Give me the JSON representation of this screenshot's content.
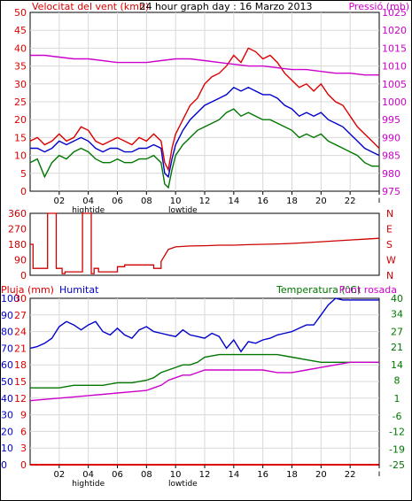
{
  "colors": {
    "wind": "#dd0000",
    "gust_avg": "#0000cc",
    "wind_green": "#007700",
    "pressure": "#cc00cc",
    "humidity": "#0000cc",
    "temperature": "#007700",
    "dewpoint": "#cc00cc",
    "rain": "#dd0000",
    "direction": "#cc0000",
    "grid": "#d8d8d8",
    "axis": "#000000"
  },
  "chart_data": [
    {
      "type": "line",
      "title": "24 hour graph day : 16 Marzo 2013",
      "ylabel": "Velocitat del vent (kmh)",
      "ylabel_right": "Pressió (mb)",
      "ylim": [
        0,
        50
      ],
      "ylim_right": [
        975,
        1025
      ],
      "yticks": [
        0,
        5,
        10,
        15,
        20,
        25,
        30,
        35,
        40,
        45,
        50
      ],
      "yticks_right": [
        975,
        980,
        985,
        990,
        995,
        1000,
        1005,
        1010,
        1015,
        1020,
        1025
      ],
      "xlim": [
        0,
        24
      ],
      "xticks": [
        "02",
        "04",
        "06",
        "08",
        "10",
        "12",
        "14",
        "16",
        "18",
        "20",
        "22"
      ],
      "xticks_extra": [
        {
          "label": "hightide",
          "at": 4
        },
        {
          "label": "lowtide",
          "at": 10.5
        }
      ],
      "grid": true,
      "series": [
        {
          "name": "wind_gust",
          "axis": "left",
          "x": [
            0,
            0.5,
            1,
            1.5,
            2,
            2.5,
            3,
            3.5,
            4,
            4.5,
            5,
            5.5,
            6,
            6.5,
            7,
            7.5,
            8,
            8.5,
            9,
            9.25,
            9.5,
            9.75,
            10,
            10.5,
            11,
            11.5,
            12,
            12.5,
            13,
            13.5,
            14,
            14.5,
            15,
            15.5,
            16,
            16.5,
            17,
            17.5,
            18,
            18.5,
            19,
            19.5,
            20,
            20.5,
            21,
            21.5,
            22,
            22.5,
            23,
            23.5,
            24
          ],
          "values": [
            14,
            15,
            13,
            14,
            16,
            14,
            15,
            18,
            17,
            14,
            13,
            14,
            15,
            14,
            13,
            15,
            14,
            16,
            14,
            8,
            6,
            12,
            16,
            20,
            24,
            26,
            30,
            32,
            33,
            35,
            38,
            36,
            40,
            39,
            37,
            38,
            36,
            33,
            31,
            29,
            30,
            28,
            30,
            27,
            25,
            24,
            21,
            18,
            16,
            14,
            12
          ]
        },
        {
          "name": "wind_average",
          "axis": "left",
          "x": [
            0,
            0.5,
            1,
            1.5,
            2,
            2.5,
            3,
            3.5,
            4,
            4.5,
            5,
            5.5,
            6,
            6.5,
            7,
            7.5,
            8,
            8.5,
            9,
            9.25,
            9.5,
            9.75,
            10,
            10.5,
            11,
            11.5,
            12,
            12.5,
            13,
            13.5,
            14,
            14.5,
            15,
            15.5,
            16,
            16.5,
            17,
            17.5,
            18,
            18.5,
            19,
            19.5,
            20,
            20.5,
            21,
            21.5,
            22,
            22.5,
            23,
            23.5,
            24
          ],
          "values": [
            12,
            12,
            11,
            12,
            14,
            13,
            14,
            15,
            14,
            12,
            11,
            12,
            12,
            11,
            11,
            12,
            12,
            13,
            12,
            5,
            4,
            9,
            13,
            17,
            20,
            22,
            24,
            25,
            26,
            27,
            29,
            28,
            29,
            28,
            27,
            27,
            26,
            24,
            23,
            21,
            22,
            21,
            22,
            20,
            19,
            18,
            16,
            14,
            12,
            11,
            10
          ]
        },
        {
          "name": "wind_speed",
          "axis": "left",
          "x": [
            0,
            0.5,
            1,
            1.5,
            2,
            2.5,
            3,
            3.5,
            4,
            4.5,
            5,
            5.5,
            6,
            6.5,
            7,
            7.5,
            8,
            8.5,
            9,
            9.25,
            9.5,
            9.75,
            10,
            10.5,
            11,
            11.5,
            12,
            12.5,
            13,
            13.5,
            14,
            14.5,
            15,
            15.5,
            16,
            16.5,
            17,
            17.5,
            18,
            18.5,
            19,
            19.5,
            20,
            20.5,
            21,
            21.5,
            22,
            22.5,
            23,
            23.5,
            24
          ],
          "values": [
            8,
            9,
            4,
            8,
            10,
            9,
            11,
            12,
            11,
            9,
            8,
            8,
            9,
            8,
            8,
            9,
            9,
            10,
            8,
            2,
            1,
            6,
            10,
            13,
            15,
            17,
            18,
            19,
            20,
            22,
            23,
            21,
            22,
            21,
            20,
            20,
            19,
            18,
            17,
            15,
            16,
            15,
            16,
            14,
            13,
            12,
            11,
            10,
            8,
            7,
            7
          ]
        },
        {
          "name": "pressure",
          "axis": "right",
          "x": [
            0,
            1,
            2,
            3,
            4,
            5,
            6,
            7,
            8,
            9,
            10,
            11,
            12,
            13,
            14,
            15,
            16,
            17,
            18,
            19,
            20,
            21,
            22,
            23,
            24
          ],
          "values": [
            1013,
            1013,
            1012.5,
            1012,
            1012,
            1011.5,
            1011,
            1011,
            1011,
            1011.5,
            1012,
            1012,
            1011.5,
            1011,
            1010.5,
            1010,
            1010,
            1009.5,
            1009,
            1009,
            1008.5,
            1008,
            1008,
            1007.5,
            1007.5
          ]
        }
      ]
    },
    {
      "type": "line",
      "ylim": [
        0,
        360
      ],
      "yticks": [
        0,
        90,
        180,
        270,
        360
      ],
      "yticks_right": [
        "N",
        "W",
        "S",
        "E",
        "N"
      ],
      "xlim": [
        0,
        24
      ],
      "grid": false,
      "series": [
        {
          "name": "wind_direction",
          "x": [
            0,
            0.2,
            0.2,
            1.2,
            1.2,
            1.8,
            1.8,
            2.2,
            2.2,
            2.4,
            2.4,
            3.6,
            3.6,
            4.2,
            4.2,
            4.4,
            4.4,
            4.7,
            4.7,
            6,
            6,
            6.5,
            6.5,
            8.5,
            8.5,
            9,
            9,
            9.5,
            10,
            11,
            12,
            13,
            14,
            15,
            16,
            17,
            18,
            19,
            20,
            21,
            22,
            23,
            24
          ],
          "values": [
            180,
            180,
            40,
            40,
            360,
            360,
            40,
            40,
            10,
            10,
            20,
            20,
            360,
            360,
            10,
            10,
            40,
            40,
            20,
            20,
            50,
            50,
            60,
            60,
            40,
            40,
            80,
            150,
            165,
            170,
            172,
            175,
            175,
            178,
            180,
            182,
            185,
            190,
            195,
            200,
            205,
            210,
            215
          ]
        }
      ]
    },
    {
      "type": "line",
      "ylabel": "Pluja (mm)",
      "ylabel_alt": "Humitat",
      "ylabel_right": "Temperatura (°C)",
      "ylabel_right_alt": "Punt rosada",
      "ylim_humidity": [
        0,
        100
      ],
      "yticks_humidity": [
        0,
        10,
        20,
        30,
        40,
        50,
        60,
        70,
        80,
        90,
        100
      ],
      "ylim_rain": [
        0,
        30
      ],
      "yticks_rain": [
        0,
        3,
        6,
        9,
        12,
        15,
        18,
        21,
        24,
        27,
        30
      ],
      "ylim_right": [
        -25,
        40
      ],
      "yticks_right": [
        -25,
        -19,
        -12,
        -6,
        1,
        8,
        14,
        21,
        27,
        34,
        40
      ],
      "xlim": [
        0,
        24
      ],
      "xticks": [
        "02",
        "04",
        "06",
        "08",
        "10",
        "12",
        "14",
        "16",
        "18",
        "20",
        "22"
      ],
      "xticks_extra": [
        {
          "label": "hightide",
          "at": 4
        },
        {
          "label": "lowtide",
          "at": 10.5
        }
      ],
      "grid": true,
      "series": [
        {
          "name": "humidity",
          "axis": "humidity",
          "x": [
            0,
            0.5,
            1,
            1.5,
            2,
            2.5,
            3,
            3.5,
            4,
            4.5,
            5,
            5.5,
            6,
            6.5,
            7,
            7.5,
            8,
            8.5,
            9,
            9.5,
            10,
            10.5,
            11,
            11.5,
            12,
            12.5,
            13,
            13.5,
            14,
            14.5,
            15,
            15.5,
            16,
            16.5,
            17,
            17.5,
            18,
            18.5,
            19,
            19.5,
            20,
            20.5,
            21,
            21.5,
            22,
            22.5,
            23,
            23.5,
            24
          ],
          "values": [
            70,
            71,
            73,
            76,
            83,
            86,
            84,
            81,
            84,
            86,
            80,
            78,
            82,
            78,
            76,
            81,
            83,
            80,
            79,
            78,
            77,
            81,
            78,
            77,
            76,
            79,
            77,
            70,
            75,
            68,
            74,
            73,
            75,
            76,
            78,
            79,
            80,
            82,
            84,
            84,
            90,
            96,
            100,
            99,
            99,
            99,
            99,
            99,
            99
          ]
        },
        {
          "name": "temperature",
          "axis": "right",
          "x": [
            0,
            1,
            2,
            3,
            4,
            5,
            6,
            7,
            8,
            8.5,
            9,
            9.5,
            10,
            10.5,
            11,
            11.5,
            12,
            13,
            14,
            15,
            16,
            17,
            18,
            19,
            20,
            21,
            22,
            23,
            24
          ],
          "values": [
            5,
            5,
            5,
            6,
            6,
            6,
            7,
            7,
            8,
            9,
            11,
            12,
            13,
            14,
            14,
            15,
            17,
            18,
            18,
            18,
            18,
            18,
            17,
            16,
            15,
            15,
            15,
            15,
            15
          ]
        },
        {
          "name": "dewpoint",
          "axis": "right",
          "x": [
            0,
            1,
            2,
            3,
            4,
            5,
            6,
            7,
            8,
            8.5,
            9,
            9.5,
            10,
            10.5,
            11,
            11.5,
            12,
            13,
            14,
            15,
            16,
            17,
            18,
            19,
            20,
            21,
            22,
            23,
            24
          ],
          "values": [
            0,
            0.5,
            1,
            1.5,
            2,
            2.5,
            3,
            3.5,
            4,
            5,
            6,
            8,
            9,
            10,
            10,
            11,
            12,
            12,
            12,
            12,
            12,
            11,
            11,
            12,
            13,
            14,
            15,
            15,
            15
          ]
        },
        {
          "name": "rain",
          "axis": "rain",
          "x": [
            0,
            24
          ],
          "values": [
            0,
            0
          ]
        }
      ]
    }
  ]
}
